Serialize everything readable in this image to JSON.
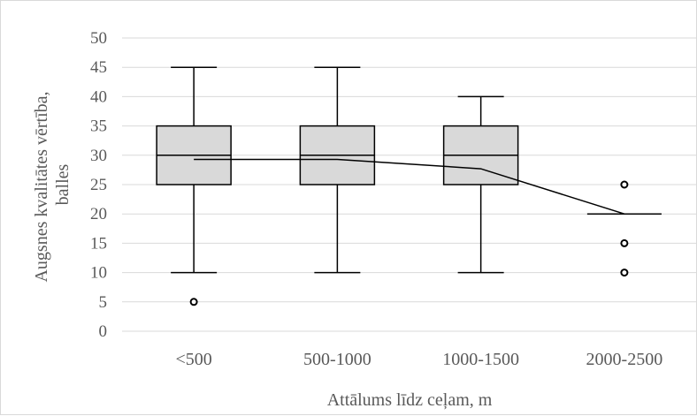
{
  "chart_data": {
    "type": "box",
    "xlabel": "Attālums līdz ceļam, m",
    "ylabel_lines": [
      "Augsnes kvalitātes vērtība,",
      "balles"
    ],
    "ylim": [
      0,
      50
    ],
    "yticks": [
      0,
      5,
      10,
      15,
      20,
      25,
      30,
      35,
      40,
      45,
      50
    ],
    "grid": true,
    "categories": [
      "<500",
      "500-1000",
      "1000-1500",
      "2000-2500"
    ],
    "boxes": [
      {
        "min": 10,
        "q1": 25,
        "median": 30,
        "q3": 35,
        "max": 45,
        "outliers": [
          5
        ]
      },
      {
        "min": 10,
        "q1": 25,
        "median": 30,
        "q3": 35,
        "max": 45,
        "outliers": []
      },
      {
        "min": 10,
        "q1": 25,
        "median": 30,
        "q3": 35,
        "max": 40,
        "outliers": []
      },
      {
        "min": 20,
        "q1": 20,
        "median": 20,
        "q3": 20,
        "max": 20,
        "outliers": [
          10,
          15,
          25
        ]
      }
    ],
    "mean_line": [
      29.3,
      29.3,
      27.7,
      20
    ],
    "colors": {
      "box_fill": "#d9d9d9",
      "stroke": "#000000",
      "grid": "#d9d9d9",
      "text": "#595959"
    }
  }
}
